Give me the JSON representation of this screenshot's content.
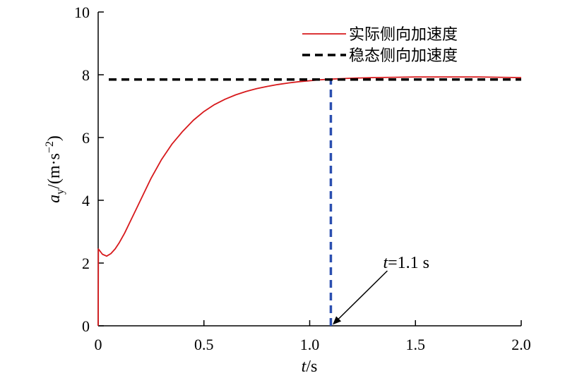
{
  "chart_data": {
    "type": "line",
    "xlim": [
      0,
      2.0
    ],
    "ylim": [
      0,
      10
    ],
    "x_ticks": [
      "0",
      "0.5",
      "1.0",
      "1.5",
      "2.0"
    ],
    "y_ticks": [
      "0",
      "2",
      "4",
      "6",
      "8",
      "10"
    ],
    "xlabel": {
      "var": "t",
      "unit": "/s"
    },
    "ylabel": {
      "var": "a",
      "sub": "y",
      "unit_pre": "/(m·s",
      "sup": "−2",
      "unit_post": ")"
    },
    "grid": false,
    "legend_position": "top-right",
    "series": [
      {
        "name": "实际侧向加速度",
        "style": "solid",
        "color": "#d7191c",
        "points": [
          [
            0,
            0
          ],
          [
            0.001,
            2.45
          ],
          [
            0.02,
            2.28
          ],
          [
            0.04,
            2.22
          ],
          [
            0.06,
            2.3
          ],
          [
            0.08,
            2.45
          ],
          [
            0.1,
            2.65
          ],
          [
            0.125,
            2.95
          ],
          [
            0.15,
            3.3
          ],
          [
            0.175,
            3.65
          ],
          [
            0.2,
            4.0
          ],
          [
            0.225,
            4.35
          ],
          [
            0.25,
            4.7
          ],
          [
            0.3,
            5.3
          ],
          [
            0.35,
            5.8
          ],
          [
            0.4,
            6.2
          ],
          [
            0.45,
            6.55
          ],
          [
            0.5,
            6.83
          ],
          [
            0.55,
            7.05
          ],
          [
            0.6,
            7.22
          ],
          [
            0.65,
            7.36
          ],
          [
            0.7,
            7.47
          ],
          [
            0.75,
            7.56
          ],
          [
            0.8,
            7.63
          ],
          [
            0.85,
            7.69
          ],
          [
            0.9,
            7.74
          ],
          [
            0.95,
            7.78
          ],
          [
            1.0,
            7.81
          ],
          [
            1.05,
            7.84
          ],
          [
            1.1,
            7.86
          ],
          [
            1.2,
            7.89
          ],
          [
            1.3,
            7.91
          ],
          [
            1.4,
            7.92
          ],
          [
            1.5,
            7.93
          ],
          [
            1.6,
            7.93
          ],
          [
            1.7,
            7.93
          ],
          [
            1.8,
            7.93
          ],
          [
            1.9,
            7.92
          ],
          [
            2.0,
            7.91
          ]
        ]
      },
      {
        "name": "稳态侧向加速度",
        "style": "dashed",
        "color": "#000000",
        "points": [
          [
            0.05,
            7.85
          ],
          [
            2.0,
            7.85
          ]
        ]
      }
    ],
    "annotations": [
      {
        "text_var": "t",
        "text_rest": "=1.1 s",
        "x": 1.1,
        "y": 0,
        "style": "arrow"
      }
    ],
    "vline": {
      "x": 1.1,
      "y_from": 0,
      "y_to": 7.85,
      "color": "#2b4fb0",
      "style": "dashed"
    }
  }
}
